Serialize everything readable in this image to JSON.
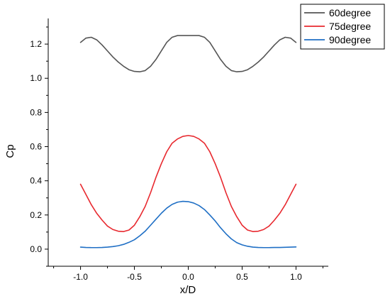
{
  "chart_data": {
    "type": "line",
    "title": "",
    "xlabel": "x/D",
    "ylabel": "Cp",
    "xlim": [
      -1.3,
      1.3
    ],
    "ylim": [
      -0.1,
      1.35
    ],
    "xticks": [
      -1.0,
      -0.5,
      0.0,
      0.5,
      1.0
    ],
    "xtick_labels": [
      "-1.0",
      "-0.5",
      "0.0",
      "0.5",
      "1.0"
    ],
    "yticks": [
      0.0,
      0.2,
      0.4,
      0.6,
      0.8,
      1.0,
      1.2
    ],
    "ytick_labels": [
      "0.0",
      "0.2",
      "0.4",
      "0.6",
      "0.8",
      "1.0",
      "1.2"
    ],
    "grid": false,
    "legend_position": "top-right",
    "series": [
      {
        "name": "60degree",
        "color": "#555555",
        "x": [
          -1.0,
          -0.95,
          -0.9,
          -0.85,
          -0.8,
          -0.75,
          -0.7,
          -0.65,
          -0.6,
          -0.55,
          -0.5,
          -0.45,
          -0.4,
          -0.35,
          -0.3,
          -0.25,
          -0.2,
          -0.15,
          -0.1,
          -0.05,
          0.0,
          0.05,
          0.1,
          0.15,
          0.2,
          0.25,
          0.3,
          0.35,
          0.4,
          0.45,
          0.5,
          0.55,
          0.6,
          0.65,
          0.7,
          0.75,
          0.8,
          0.85,
          0.9,
          0.95,
          1.0
        ],
        "y": [
          1.21,
          1.235,
          1.24,
          1.225,
          1.195,
          1.16,
          1.125,
          1.095,
          1.07,
          1.05,
          1.04,
          1.038,
          1.045,
          1.07,
          1.11,
          1.16,
          1.21,
          1.24,
          1.25,
          1.25,
          1.25,
          1.25,
          1.25,
          1.24,
          1.21,
          1.16,
          1.11,
          1.07,
          1.045,
          1.038,
          1.04,
          1.05,
          1.07,
          1.095,
          1.125,
          1.16,
          1.195,
          1.225,
          1.24,
          1.235,
          1.21
        ]
      },
      {
        "name": "75degree",
        "color": "#e8292f",
        "x": [
          -1.0,
          -0.95,
          -0.9,
          -0.85,
          -0.8,
          -0.75,
          -0.7,
          -0.65,
          -0.6,
          -0.55,
          -0.5,
          -0.45,
          -0.4,
          -0.35,
          -0.3,
          -0.25,
          -0.2,
          -0.15,
          -0.1,
          -0.05,
          0.0,
          0.05,
          0.1,
          0.15,
          0.2,
          0.25,
          0.3,
          0.35,
          0.4,
          0.45,
          0.5,
          0.55,
          0.6,
          0.65,
          0.7,
          0.75,
          0.8,
          0.85,
          0.9,
          0.95,
          1.0
        ],
        "y": [
          0.38,
          0.32,
          0.26,
          0.21,
          0.17,
          0.135,
          0.115,
          0.105,
          0.103,
          0.112,
          0.14,
          0.19,
          0.25,
          0.33,
          0.42,
          0.5,
          0.57,
          0.62,
          0.645,
          0.66,
          0.665,
          0.66,
          0.645,
          0.62,
          0.57,
          0.5,
          0.42,
          0.33,
          0.25,
          0.19,
          0.14,
          0.112,
          0.103,
          0.105,
          0.115,
          0.135,
          0.17,
          0.21,
          0.26,
          0.32,
          0.38
        ]
      },
      {
        "name": "90degree",
        "color": "#1f6fc5",
        "x": [
          -1.0,
          -0.95,
          -0.9,
          -0.85,
          -0.8,
          -0.75,
          -0.7,
          -0.65,
          -0.6,
          -0.55,
          -0.5,
          -0.45,
          -0.4,
          -0.35,
          -0.3,
          -0.25,
          -0.2,
          -0.15,
          -0.1,
          -0.05,
          0.0,
          0.05,
          0.1,
          0.15,
          0.2,
          0.25,
          0.3,
          0.35,
          0.4,
          0.45,
          0.5,
          0.55,
          0.6,
          0.65,
          0.7,
          0.75,
          0.8,
          0.85,
          0.9,
          0.95,
          1.0
        ],
        "y": [
          0.012,
          0.01,
          0.009,
          0.009,
          0.01,
          0.012,
          0.015,
          0.02,
          0.028,
          0.04,
          0.055,
          0.078,
          0.105,
          0.14,
          0.175,
          0.21,
          0.24,
          0.262,
          0.275,
          0.28,
          0.278,
          0.27,
          0.255,
          0.232,
          0.2,
          0.165,
          0.125,
          0.09,
          0.06,
          0.038,
          0.025,
          0.017,
          0.012,
          0.01,
          0.009,
          0.009,
          0.01,
          0.01,
          0.011,
          0.012,
          0.013
        ]
      }
    ]
  }
}
